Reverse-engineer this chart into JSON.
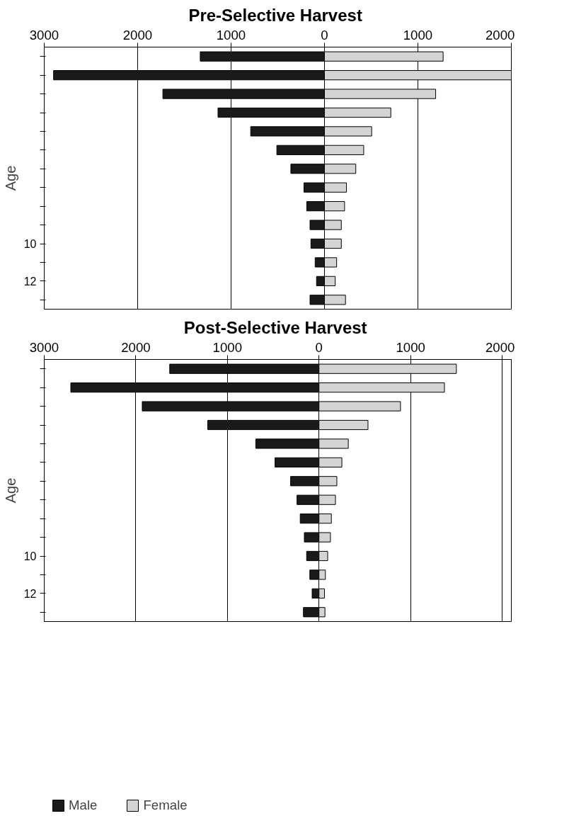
{
  "chart_data": [
    {
      "type": "bar",
      "title": "Pre-Selective  Harvest",
      "ylabel": "Age",
      "orientation": "horizontal",
      "categories": [
        null,
        null,
        null,
        null,
        null,
        null,
        null,
        null,
        null,
        null,
        "10",
        null,
        "12",
        null
      ],
      "stacked": true,
      "xlim": [
        -3000,
        2000
      ],
      "xticks": [
        {
          "value": -3000,
          "label": "3000"
        },
        {
          "value": -2000,
          "label": "2000"
        },
        {
          "value": -1000,
          "label": "1000"
        },
        0,
        1000,
        2000
      ],
      "grid": "x",
      "series": [
        {
          "color": "#1a1a1a",
          "values": [
            -1330,
            -2900,
            -1730,
            -1140,
            -790,
            -510,
            -360,
            -220,
            -190,
            -155,
            -145,
            -100,
            -85,
            -155
          ]
        },
        {
          "color": "#d4d4d4",
          "values": [
            1270,
            2000,
            1190,
            710,
            505,
            420,
            335,
            235,
            215,
            180,
            180,
            130,
            115,
            225
          ]
        }
      ]
    },
    {
      "type": "bar",
      "title": "Post-Selective  Harvest",
      "ylabel": "Age",
      "orientation": "horizontal",
      "categories": [
        null,
        null,
        null,
        null,
        null,
        null,
        null,
        null,
        null,
        null,
        "10",
        null,
        "12",
        null
      ],
      "xlim": [
        -3000,
        2100
      ],
      "xticks": [
        {
          "value": -3000,
          "label": "3000"
        },
        {
          "value": -2000,
          "label": "2000"
        },
        {
          "value": -1000,
          "label": "1000"
        },
        0,
        1000,
        2000
      ],
      "grid": "x",
      "legend": "bottom left",
      "stacked": true,
      "series": [
        {
          "name": "Male",
          "color": "#1a1a1a",
          "values": [
            -1630,
            -2710,
            -1930,
            -1215,
            -690,
            -480,
            -310,
            -240,
            -205,
            -160,
            -135,
            -100,
            -75,
            -170
          ]
        },
        {
          "name": "Female",
          "color": "#d4d4d4",
          "values": [
            1500,
            1370,
            890,
            535,
            320,
            250,
            195,
            180,
            135,
            125,
            95,
            70,
            60,
            65
          ]
        }
      ]
    }
  ]
}
